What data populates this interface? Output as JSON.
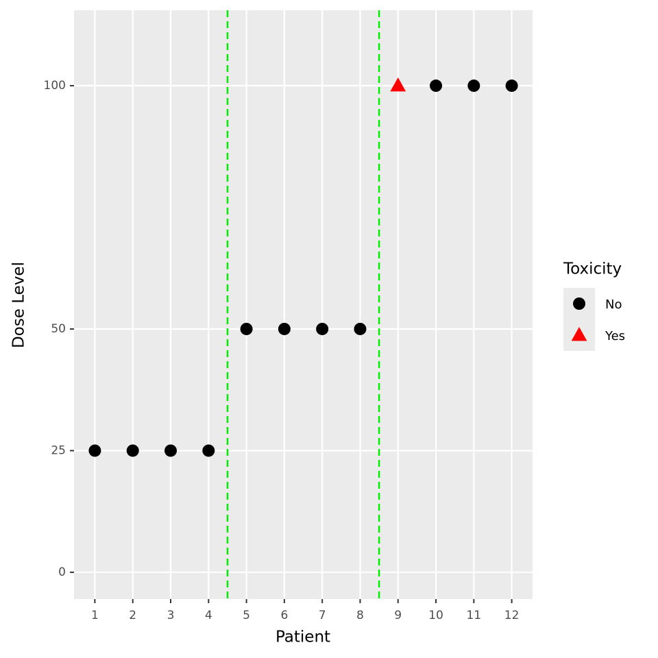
{
  "chart_data": {
    "type": "scatter",
    "x_label": "Patient",
    "y_label": "Dose Level",
    "xlim": [
      0.45,
      12.55
    ],
    "ylim": [
      -5.5,
      115.5
    ],
    "xticks": [
      1,
      2,
      3,
      4,
      5,
      6,
      7,
      8,
      9,
      10,
      11,
      12
    ],
    "yticks": [
      0,
      25,
      50,
      100
    ],
    "grid": true,
    "legend_title": "Toxicity",
    "legend_position": "right",
    "vlines": {
      "values": [
        4.5,
        8.5
      ],
      "color": "#00ee00",
      "dash": true
    },
    "series": [
      {
        "name": "No",
        "color": "#000000",
        "shape": "circle",
        "x": [
          1,
          2,
          3,
          4,
          5,
          6,
          7,
          8,
          10,
          11,
          12
        ],
        "values": [
          25,
          25,
          25,
          25,
          50,
          50,
          50,
          50,
          100,
          100,
          100
        ]
      },
      {
        "name": "Yes",
        "color": "#ff0000",
        "shape": "triangle",
        "x": [
          9
        ],
        "values": [
          100
        ]
      }
    ]
  }
}
